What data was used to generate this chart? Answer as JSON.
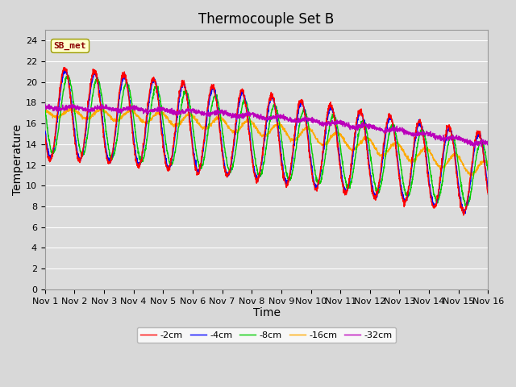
{
  "title": "Thermocouple Set B",
  "xlabel": "Time",
  "ylabel": "Temperature",
  "annotation": "SB_met",
  "legend_labels": [
    "-2cm",
    "-4cm",
    "-8cm",
    "-16cm",
    "-32cm"
  ],
  "legend_colors": [
    "#ff0000",
    "#0000ff",
    "#00cc00",
    "#ffaa00",
    "#bb00bb"
  ],
  "ylim": [
    0,
    25
  ],
  "yticks": [
    0,
    2,
    4,
    6,
    8,
    10,
    12,
    14,
    16,
    18,
    20,
    22,
    24
  ],
  "xtick_labels": [
    "Nov 1",
    "Nov 2",
    "Nov 3",
    "Nov 4",
    "Nov 5",
    "Nov 6",
    "Nov 7",
    "Nov 8",
    "Nov 9",
    "Nov 10",
    "Nov 11",
    "Nov 12",
    "Nov 13",
    "Nov 14",
    "Nov 15",
    "Nov 16"
  ],
  "bg_color": "#dcdcdc",
  "plot_bg_color": "#dcdcdc",
  "grid_color": "#ffffff",
  "title_fontsize": 12,
  "axis_fontsize": 10,
  "tick_fontsize": 8,
  "line_width": 1.0
}
